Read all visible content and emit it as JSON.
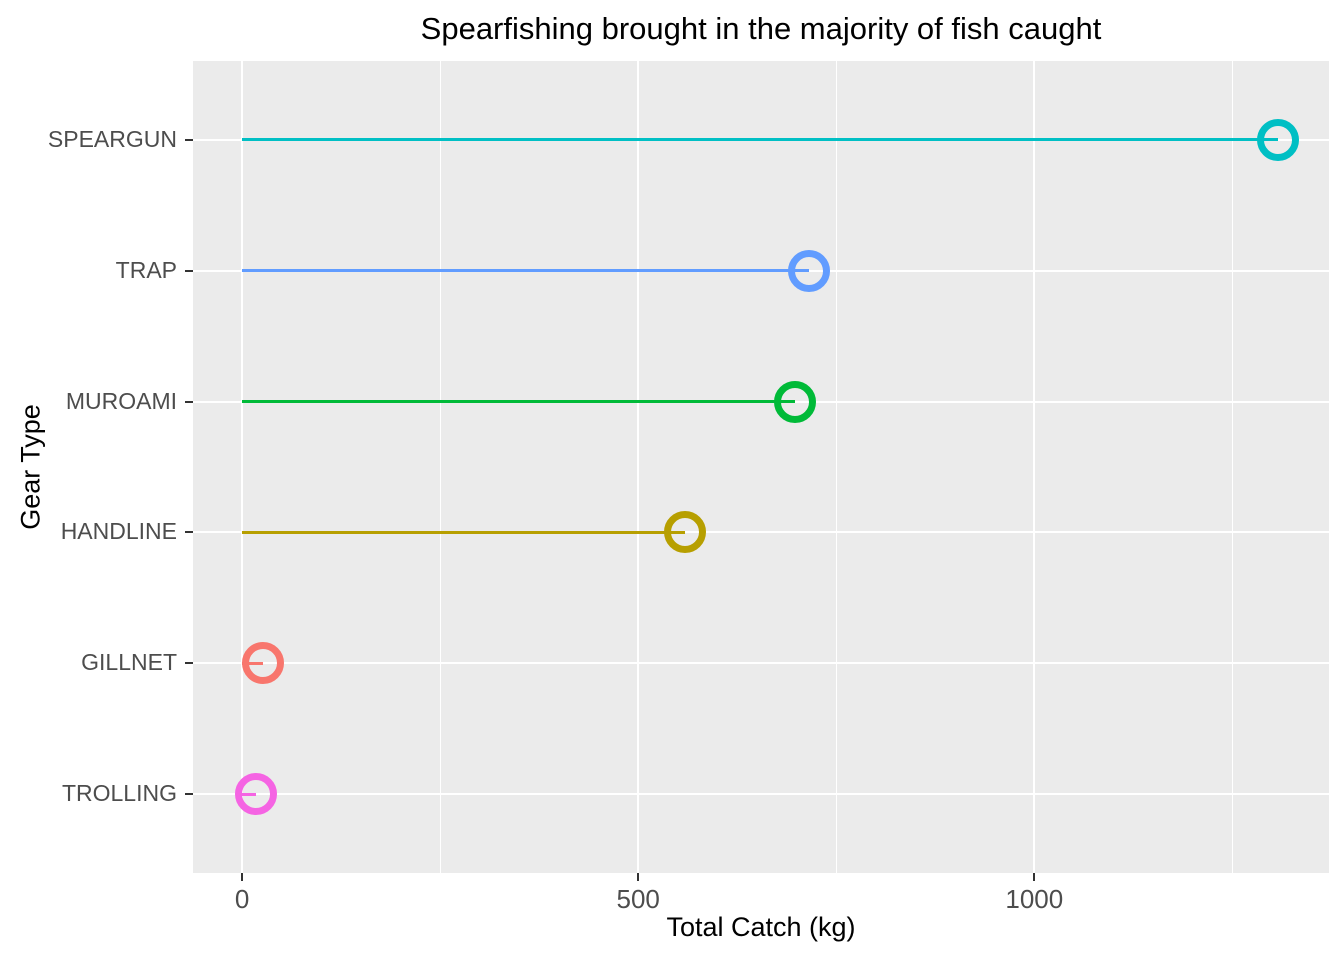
{
  "chart_data": {
    "type": "bar",
    "variant": "horizontal-lollipop",
    "title": "Spearfishing brought in the majority of fish caught",
    "xlabel": "Total Catch (kg)",
    "ylabel": "Gear Type",
    "categories": [
      "SPEARGUN",
      "TRAP",
      "MUROAMI",
      "HANDLINE",
      "GILLNET",
      "TROLLING"
    ],
    "values": [
      1307,
      716,
      698,
      559,
      26,
      18
    ],
    "colors": [
      "#00BFC4",
      "#619CFF",
      "#00BA38",
      "#B79F00",
      "#F8766D",
      "#F564E3"
    ],
    "x_ticks": [
      0,
      500,
      1000
    ],
    "x_tick_labels": [
      "0",
      "500",
      "1000"
    ],
    "x_minor_ticks": [
      250,
      750,
      1250
    ],
    "xlim": [
      -62,
      1372
    ],
    "grid": true,
    "legend": false,
    "marker": "open-circle",
    "panel_bg": "#EBEBEB",
    "grid_color": "#FFFFFF",
    "tick_mark_color": "#333333",
    "axis_text_color": "#4D4D4D",
    "title_color": "#000000"
  }
}
